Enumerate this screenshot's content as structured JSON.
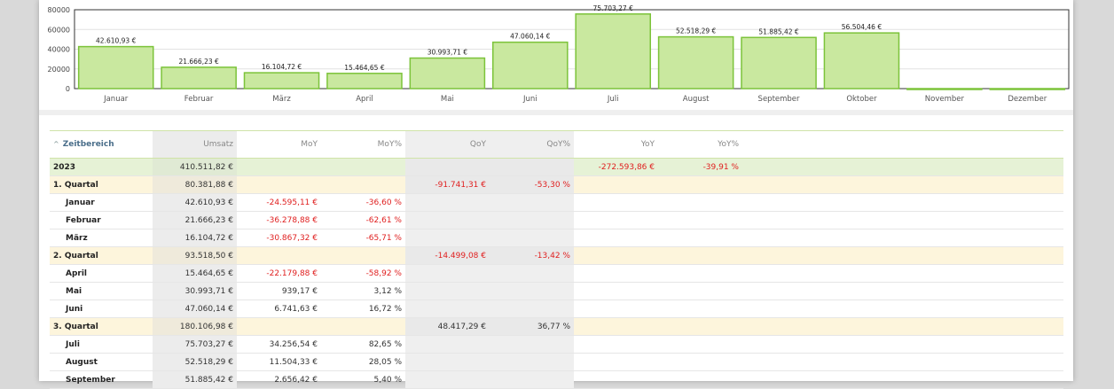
{
  "chart_data": {
    "type": "bar",
    "categories": [
      "Januar",
      "Februar",
      "März",
      "April",
      "Mai",
      "Juni",
      "Juli",
      "August",
      "September",
      "Oktober",
      "November",
      "Dezember"
    ],
    "values": [
      42610.93,
      21666.23,
      16104.72,
      15464.65,
      30993.71,
      47060.14,
      75703.27,
      52518.29,
      51885.42,
      56504.46,
      0,
      0
    ],
    "data_labels": [
      "42.610,93 €",
      "21.666,23 €",
      "16.104,72 €",
      "15.464,65 €",
      "30.993,71 €",
      "47.060,14 €",
      "75.703,27 €",
      "52.518,29 €",
      "51.885,42 €",
      "56.504,46 €",
      "",
      ""
    ],
    "y_ticks": [
      "0",
      "20000",
      "40000",
      "60000",
      "80000"
    ],
    "y_tick_values": [
      0,
      20000,
      40000,
      60000,
      80000
    ],
    "ylim": [
      0,
      80000
    ],
    "grid": true,
    "bar_color": "#c9e89f",
    "bar_border": "#7cc33a"
  },
  "table": {
    "sort_icon": "sort-asc-icon",
    "headers": {
      "zeitbereich": "Zeitbereich",
      "umsatz": "Umsatz",
      "moy": "MoY",
      "moy_pct": "MoY%",
      "qoy": "QoY",
      "qoy_pct": "QoY%",
      "yoy": "YoY",
      "yoy_pct": "YoY%"
    },
    "rows": [
      {
        "type": "year",
        "label": "2023",
        "umsatz": "410.511,82 €",
        "moy": "",
        "moy_pct": "",
        "qoy": "",
        "qoy_pct": "",
        "yoy": "-272.593,86 €",
        "yoy_pct": "-39,91 %"
      },
      {
        "type": "quarter",
        "label": "1. Quartal",
        "umsatz": "80.381,88 €",
        "moy": "",
        "moy_pct": "",
        "qoy": "-91.741,31 €",
        "qoy_pct": "-53,30 %",
        "yoy": "",
        "yoy_pct": ""
      },
      {
        "type": "month",
        "label": "Januar",
        "umsatz": "42.610,93 €",
        "moy": "-24.595,11 €",
        "moy_pct": "-36,60 %",
        "qoy": "",
        "qoy_pct": "",
        "yoy": "",
        "yoy_pct": ""
      },
      {
        "type": "month",
        "label": "Februar",
        "umsatz": "21.666,23 €",
        "moy": "-36.278,88 €",
        "moy_pct": "-62,61 %",
        "qoy": "",
        "qoy_pct": "",
        "yoy": "",
        "yoy_pct": ""
      },
      {
        "type": "month",
        "label": "März",
        "umsatz": "16.104,72 €",
        "moy": "-30.867,32 €",
        "moy_pct": "-65,71 %",
        "qoy": "",
        "qoy_pct": "",
        "yoy": "",
        "yoy_pct": ""
      },
      {
        "type": "quarter",
        "label": "2. Quartal",
        "umsatz": "93.518,50 €",
        "moy": "",
        "moy_pct": "",
        "qoy": "-14.499,08 €",
        "qoy_pct": "-13,42 %",
        "yoy": "",
        "yoy_pct": ""
      },
      {
        "type": "month",
        "label": "April",
        "umsatz": "15.464,65 €",
        "moy": "-22.179,88 €",
        "moy_pct": "-58,92 %",
        "qoy": "",
        "qoy_pct": "",
        "yoy": "",
        "yoy_pct": ""
      },
      {
        "type": "month",
        "label": "Mai",
        "umsatz": "30.993,71 €",
        "moy": "939,17 €",
        "moy_pct": "3,12 %",
        "qoy": "",
        "qoy_pct": "",
        "yoy": "",
        "yoy_pct": ""
      },
      {
        "type": "month",
        "label": "Juni",
        "umsatz": "47.060,14 €",
        "moy": "6.741,63 €",
        "moy_pct": "16,72 %",
        "qoy": "",
        "qoy_pct": "",
        "yoy": "",
        "yoy_pct": ""
      },
      {
        "type": "quarter",
        "label": "3. Quartal",
        "umsatz": "180.106,98 €",
        "moy": "",
        "moy_pct": "",
        "qoy": "48.417,29 €",
        "qoy_pct": "36,77 %",
        "yoy": "",
        "yoy_pct": ""
      },
      {
        "type": "month",
        "label": "Juli",
        "umsatz": "75.703,27 €",
        "moy": "34.256,54 €",
        "moy_pct": "82,65 %",
        "qoy": "",
        "qoy_pct": "",
        "yoy": "",
        "yoy_pct": ""
      },
      {
        "type": "month",
        "label": "August",
        "umsatz": "52.518,29 €",
        "moy": "11.504,33 €",
        "moy_pct": "28,05 %",
        "qoy": "",
        "qoy_pct": "",
        "yoy": "",
        "yoy_pct": ""
      },
      {
        "type": "month",
        "label": "September",
        "umsatz": "51.885,42 €",
        "moy": "2.656,42 €",
        "moy_pct": "5,40 %",
        "qoy": "",
        "qoy_pct": "",
        "yoy": "",
        "yoy_pct": ""
      }
    ]
  }
}
